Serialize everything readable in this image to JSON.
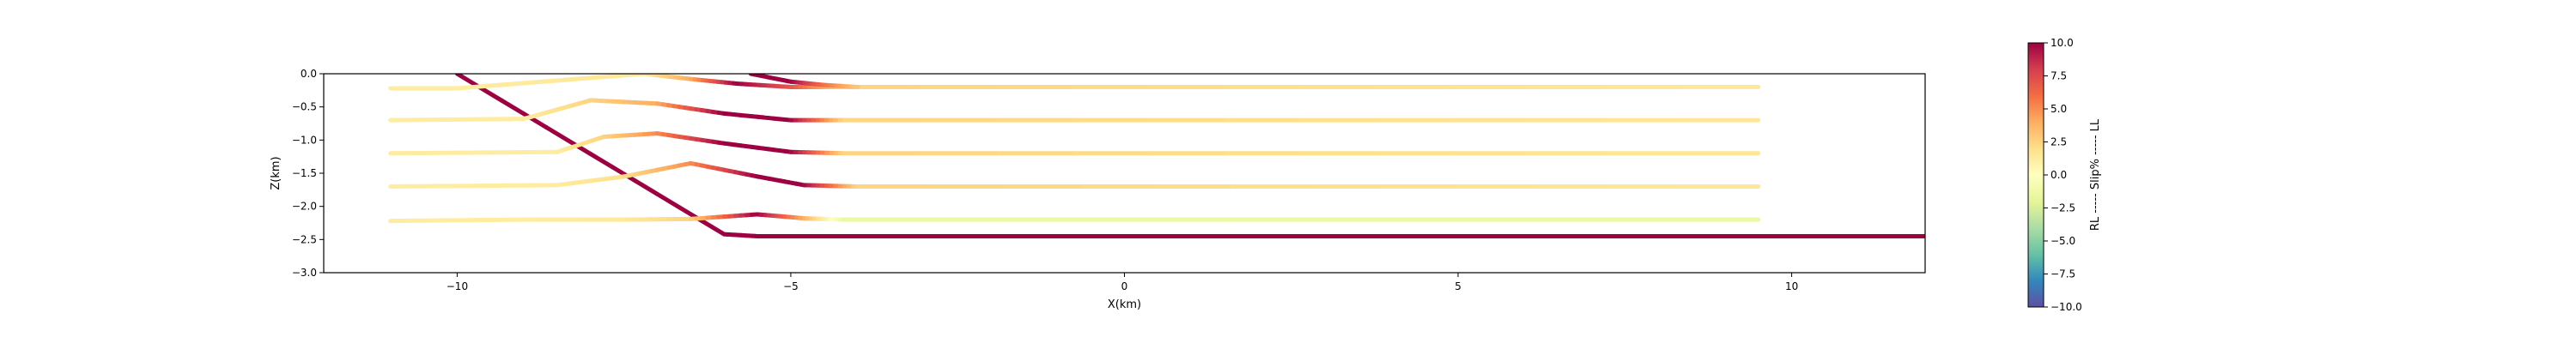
{
  "chart_data": [
    {
      "type": "line",
      "xlabel": "X(km)",
      "ylabel": "Z(km)",
      "xlim": [
        -12.0,
        12.0
      ],
      "ylim": [
        -3.0,
        0.0
      ],
      "xticks": [
        -10,
        -5,
        0,
        5,
        10
      ],
      "xtick_labels": [
        "−10",
        "−5",
        "0",
        "5",
        "10"
      ],
      "yticks": [
        0.0,
        -0.5,
        -1.0,
        -1.5,
        -2.0,
        -2.5,
        -3.0
      ],
      "ytick_labels": [
        "0.0",
        "−0.5",
        "−1.0",
        "−1.5",
        "−2.0",
        "−2.5",
        "−3.0"
      ],
      "grid": false,
      "color_scale": "Spectral_r",
      "series": [
        {
          "values_note": "",
          "x": [
            -10.0,
            -6.0,
            -5.5,
            12.0
          ],
          "y": [
            0.0,
            -2.42,
            -2.45,
            -2.45
          ],
          "slip": [
            10,
            10,
            10,
            10
          ]
        },
        {
          "x": [
            -11.0,
            -9.0,
            -7.5,
            -6.5,
            -5.5,
            -4.8,
            -4.2,
            9.5
          ],
          "y": [
            -2.22,
            -2.2,
            -2.2,
            -2.19,
            -2.12,
            -2.18,
            -2.2,
            -2.2
          ],
          "slip": [
            1.2,
            1.2,
            1.4,
            2.5,
            10,
            4,
            -1.5,
            -1.5
          ]
        },
        {
          "x": [
            -11.0,
            -8.5,
            -7.5,
            -6.5,
            -5.5,
            -4.8,
            -4.0,
            9.5
          ],
          "y": [
            -1.7,
            -1.68,
            -1.55,
            -1.35,
            -1.55,
            -1.68,
            -1.7,
            -1.7
          ],
          "slip": [
            1.2,
            1.2,
            2,
            5,
            10,
            10,
            2.5,
            1.5
          ]
        },
        {
          "x": [
            -11.0,
            -8.5,
            -7.8,
            -7.0,
            -6.0,
            -5.0,
            -4.2,
            9.5
          ],
          "y": [
            -1.2,
            -1.18,
            -0.95,
            -0.9,
            -1.05,
            -1.18,
            -1.2,
            -1.2
          ],
          "slip": [
            1.2,
            1.2,
            2.5,
            5,
            10,
            10,
            2.5,
            1.5
          ]
        },
        {
          "x": [
            -11.0,
            -9.0,
            -8.0,
            -7.0,
            -6.0,
            -5.0,
            -4.2,
            9.5
          ],
          "y": [
            -0.7,
            -0.68,
            -0.4,
            -0.45,
            -0.6,
            -0.7,
            -0.7,
            -0.7
          ],
          "slip": [
            1.2,
            1.2,
            2.5,
            4,
            10,
            10,
            2.5,
            1.5
          ]
        },
        {
          "x": [
            -11.0,
            -10.0,
            -7.2,
            -6.5,
            -5.8,
            -5.0,
            -4.2,
            9.5
          ],
          "y": [
            -0.22,
            -0.22,
            0.0,
            -0.08,
            -0.15,
            -0.2,
            -0.2,
            -0.2
          ],
          "slip": [
            1.2,
            1.2,
            1.5,
            4,
            10,
            7,
            2.5,
            1.5
          ]
        },
        {
          "x": [
            -5.6,
            -5.0,
            -4.5,
            -4.0
          ],
          "y": [
            0.0,
            -0.12,
            -0.17,
            -0.2
          ],
          "slip": [
            10,
            10,
            6,
            3
          ]
        }
      ]
    },
    {
      "type": "colorbar",
      "label": "RL ----- Slip% ----- LL",
      "range": [
        -10.0,
        10.0
      ],
      "ticks": [
        10.0,
        7.5,
        5.0,
        2.5,
        0.0,
        -2.5,
        -5.0,
        -7.5,
        -10.0
      ],
      "tick_labels": [
        "10.0",
        "7.5",
        "5.0",
        "2.5",
        "0.0",
        "−2.5",
        "−5.0",
        "−7.5",
        "−10.0"
      ],
      "colormap": "Spectral_r"
    }
  ]
}
